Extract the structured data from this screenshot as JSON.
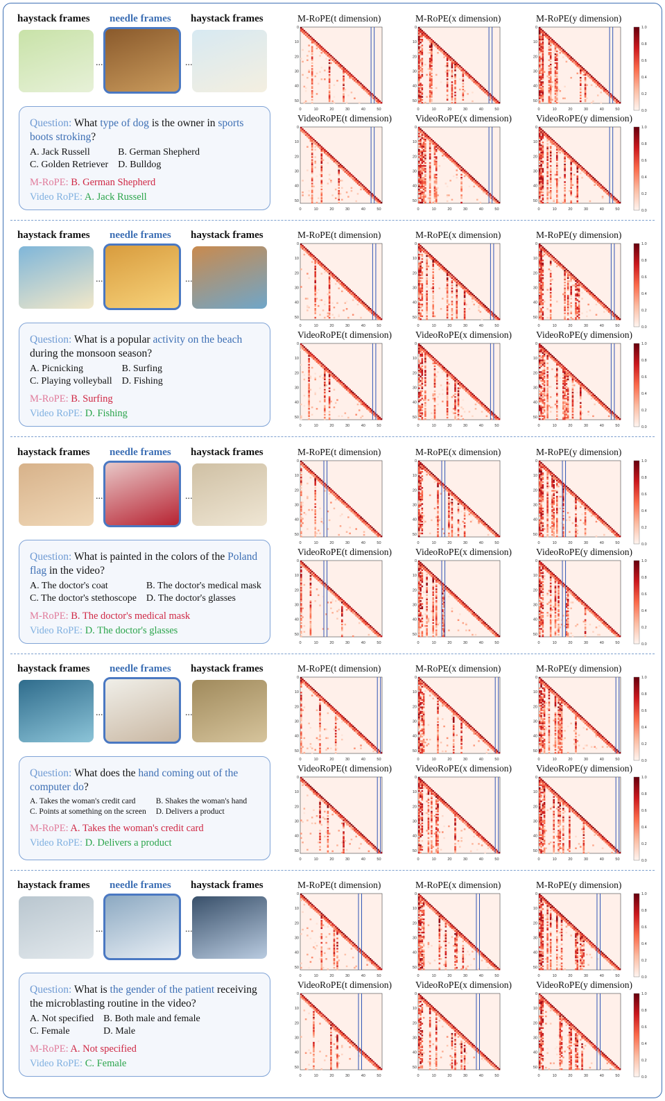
{
  "frame_labels": {
    "haystack": "haystack frames",
    "needle": "needle frames"
  },
  "ellipsis": "...",
  "colorbar_ticks": [
    "1.0",
    "0.8",
    "0.6",
    "0.4",
    "0.2",
    "0.0"
  ],
  "axis_ticks": [
    "0",
    "10",
    "20",
    "30",
    "40",
    "50"
  ],
  "answer_labels": {
    "question": "Question:",
    "mrope": "M-RoPE:",
    "videorope": "Video RoPE:"
  },
  "panel_titles": [
    [
      "M-RoPE(t dimension)",
      "M-RoPE(x dimension)",
      "M-RoPE(y dimension)"
    ],
    [
      "VideoRoPE(t dimension)",
      "VideoRoPE(x dimension)",
      "VideoRoPE(y dimension)"
    ]
  ],
  "colors": {
    "border": "#3d6fb4",
    "mrope_answer": "#cf2744",
    "videorope_answer": "#2aa44a",
    "needle_line": "#2f55b5"
  },
  "examples": [
    {
      "question_parts": [
        "What ",
        "type of dog",
        " is the owner in ",
        "sports boots stroking",
        "?"
      ],
      "options": [
        "A. Jack Russell",
        "B. German Shepherd",
        "C. Golden Retriever",
        "D. Bulldog"
      ],
      "mrope_answer": "B. German Shepherd",
      "videorope_answer": "A. Jack Russell",
      "needle_position": 45
    },
    {
      "question_parts": [
        "What is a popular ",
        "activity on the beach",
        " during the monsoon season?",
        "",
        ""
      ],
      "options": [
        "A. Picnicking",
        "B. Surfing",
        "C. Playing volleyball",
        "D. Fishing"
      ],
      "mrope_answer": "B. Surfing",
      "videorope_answer": "D. Fishing",
      "needle_position": 46
    },
    {
      "question_parts": [
        "What is painted in the colors of the ",
        "Poland flag",
        " in the video?",
        "",
        ""
      ],
      "options": [
        "A. The doctor's coat",
        "B. The doctor's medical mask",
        "C. The doctor's stethoscope",
        "D. The doctor's glasses"
      ],
      "mrope_answer": "B. The doctor's medical mask",
      "videorope_answer": "D. The doctor's glasses",
      "needle_position": 15
    },
    {
      "question_parts": [
        "What does the ",
        "hand coming out of the computer do",
        "?",
        "",
        ""
      ],
      "options": [
        "A. Takes the woman's credit card",
        "B. Shakes the woman's hand",
        "C. Points at something on the screen",
        "D. Delivers a product"
      ],
      "mrope_answer": "A. Takes the woman's credit card",
      "videorope_answer": "D. Delivers a product",
      "needle_position": 49
    },
    {
      "question_parts": [
        "What is ",
        "the gender of the patient",
        " receiving the microblasting routine in the video?",
        "",
        ""
      ],
      "options": [
        "A. Not specified",
        "B. Both male and female",
        "C. Female",
        "D. Male"
      ],
      "mrope_answer": "A. Not specified",
      "videorope_answer": "C. Female",
      "needle_position": 37
    }
  ]
}
